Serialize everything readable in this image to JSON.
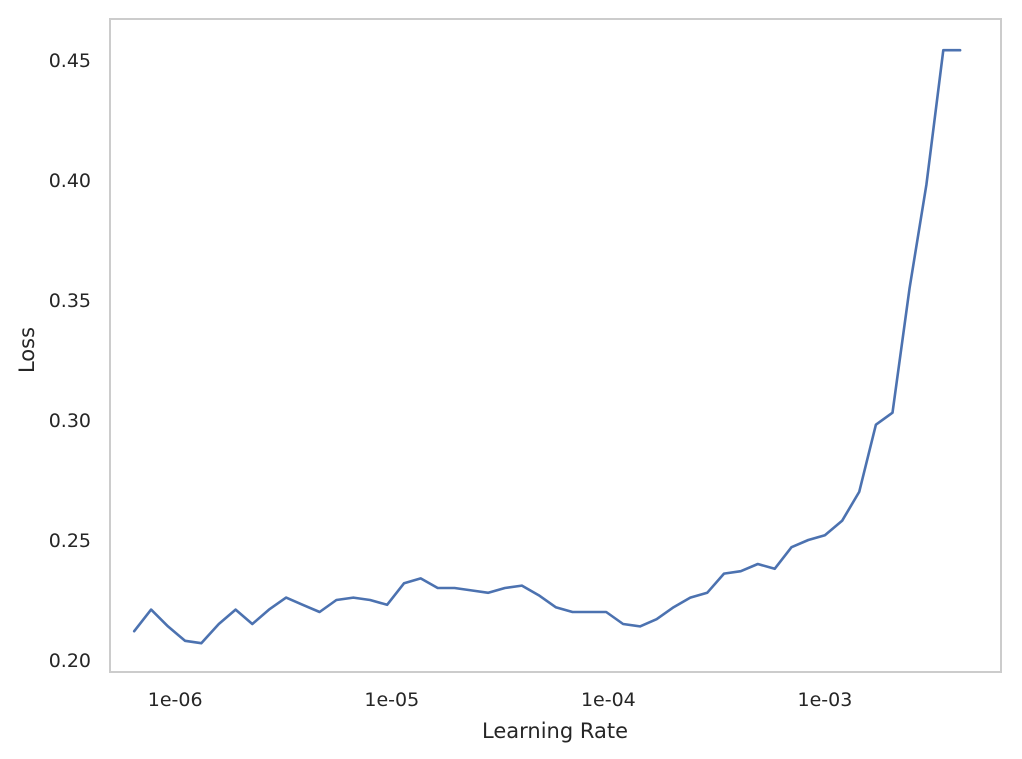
{
  "chart_data": {
    "type": "line",
    "title": "",
    "xlabel": "Learning Rate",
    "ylabel": "Loss",
    "xscale": "log",
    "xlim": [
      5e-07,
      0.0065
    ],
    "ylim": [
      0.195,
      0.467
    ],
    "grid": false,
    "line_color": "#4c72b0",
    "frame_color": "#cccccc",
    "text_color": "#262626",
    "x_ticks": [
      {
        "value": 1e-06,
        "label": "1e-06"
      },
      {
        "value": 1e-05,
        "label": "1e-05"
      },
      {
        "value": 0.0001,
        "label": "1e-04"
      },
      {
        "value": 0.001,
        "label": "1e-03"
      }
    ],
    "y_ticks": [
      {
        "value": 0.2,
        "label": "0.20"
      },
      {
        "value": 0.25,
        "label": "0.25"
      },
      {
        "value": 0.3,
        "label": "0.30"
      },
      {
        "value": 0.35,
        "label": "0.35"
      },
      {
        "value": 0.4,
        "label": "0.40"
      },
      {
        "value": 0.45,
        "label": "0.45"
      }
    ],
    "series": [
      {
        "x": [
          6.47e-07,
          7.74e-07,
          9.26e-07,
          1.11e-06,
          1.32e-06,
          1.59e-06,
          1.9e-06,
          2.27e-06,
          2.71e-06,
          3.25e-06,
          3.88e-06,
          4.64e-06,
          5.55e-06,
          6.64e-06,
          7.94e-06,
          9.51e-06,
          1.14e-05,
          1.36e-05,
          1.63e-05,
          1.95e-05,
          2.33e-05,
          2.79e-05,
          3.33e-05,
          3.99e-05,
          4.77e-05,
          5.71e-05,
          6.83e-05,
          8.17e-05,
          9.77e-05,
          0.000117,
          0.00014,
          0.000167,
          0.0002,
          0.000239,
          0.000286,
          0.000342,
          0.000409,
          0.00049,
          0.000586,
          0.000701,
          0.000838,
          0.001,
          0.0012,
          0.00144,
          0.00172,
          0.00205,
          0.00246,
          0.00294,
          0.00352,
          0.00421
        ],
        "y": [
          0.212,
          0.221,
          0.214,
          0.208,
          0.207,
          0.215,
          0.221,
          0.215,
          0.221,
          0.226,
          0.223,
          0.22,
          0.225,
          0.226,
          0.225,
          0.223,
          0.232,
          0.234,
          0.23,
          0.23,
          0.229,
          0.228,
          0.23,
          0.231,
          0.227,
          0.222,
          0.22,
          0.22,
          0.22,
          0.215,
          0.214,
          0.217,
          0.222,
          0.226,
          0.228,
          0.236,
          0.237,
          0.24,
          0.238,
          0.247,
          0.25,
          0.252,
          0.258,
          0.27,
          0.298,
          0.303,
          0.355,
          0.398,
          0.454,
          0.454
        ]
      }
    ]
  }
}
